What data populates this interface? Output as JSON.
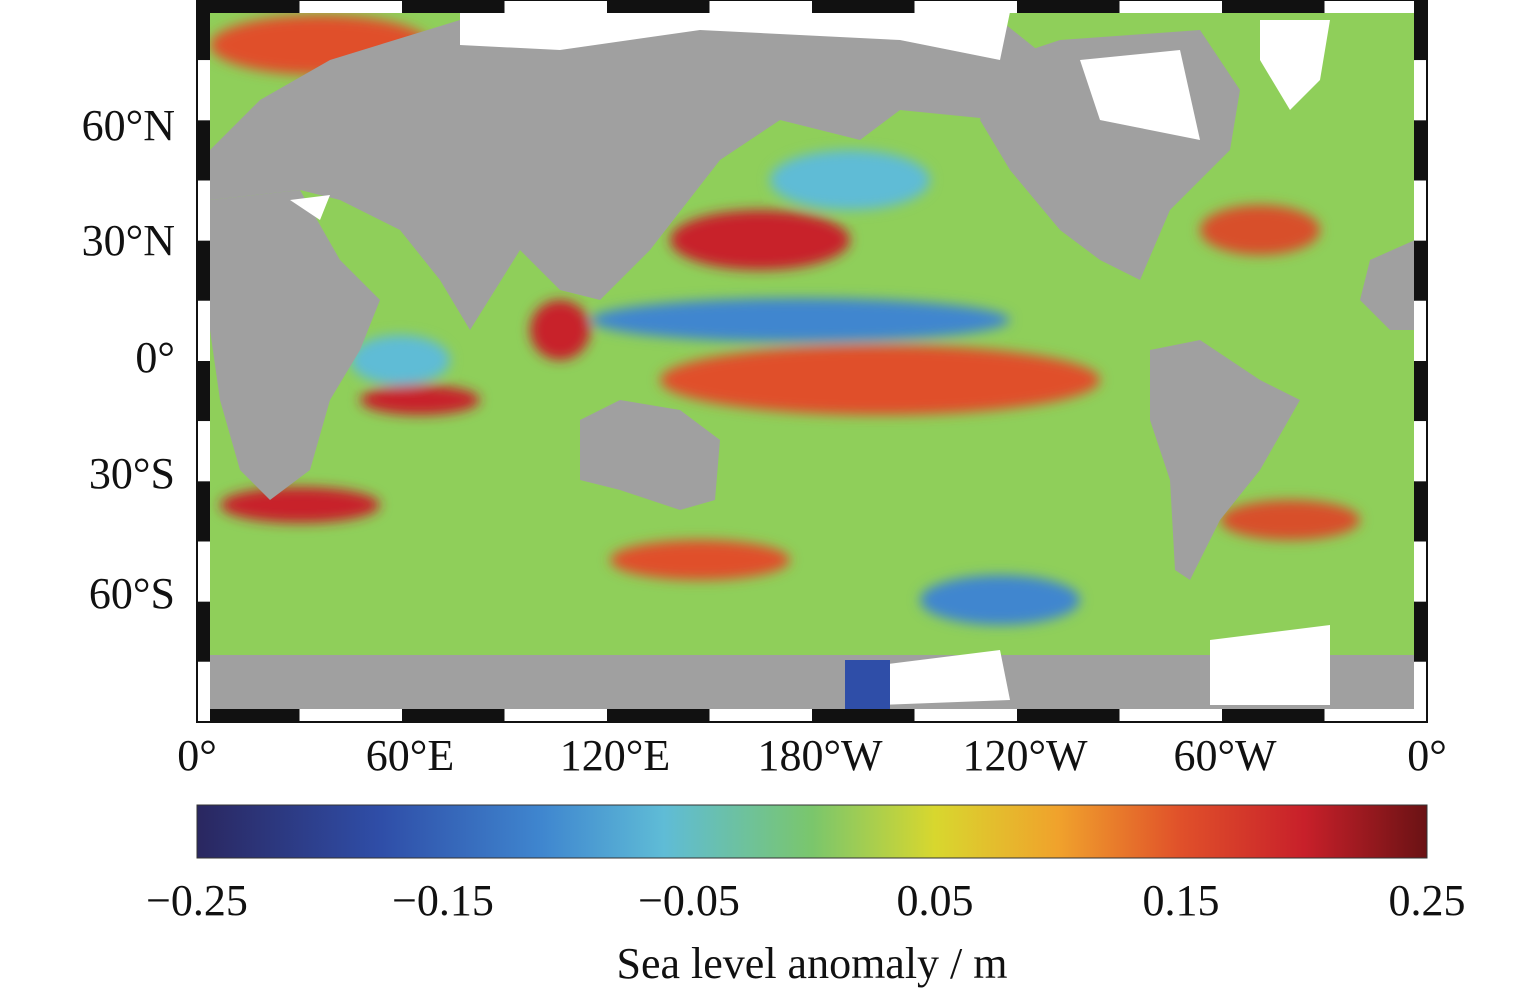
{
  "map": {
    "lat_labels": [
      "60°N",
      "30°N",
      "0°",
      "30°S",
      "60°S"
    ],
    "lon_labels": [
      "0°",
      "60°E",
      "120°E",
      "180°W",
      "120°W",
      "60°W",
      "0°"
    ]
  },
  "colorbar": {
    "label": "Sea level anomaly / m",
    "clim": [
      -0.25,
      0.25
    ],
    "ticks": [
      {
        "value": -0.25,
        "label": "−0.25"
      },
      {
        "value": -0.15,
        "label": "−0.15"
      },
      {
        "value": -0.05,
        "label": "−0.05"
      },
      0.05,
      0.15,
      0.25
    ]
  }
}
